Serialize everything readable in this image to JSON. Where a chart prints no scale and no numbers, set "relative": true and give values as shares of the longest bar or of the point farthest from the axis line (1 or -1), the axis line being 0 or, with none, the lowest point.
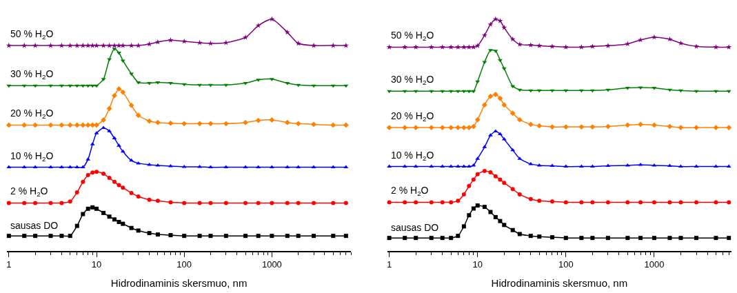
{
  "chart_data": [
    {
      "type": "line",
      "relative": true,
      "log": "x",
      "xlabel": "Hidrodinaminis skersmuo, nm",
      "xlim": [
        0.95,
        8000
      ],
      "xticks": [
        1,
        10,
        100,
        1000
      ],
      "legend": false,
      "tick_labels": "x",
      "line_style": "solid",
      "x": [
        1,
        1.5,
        2,
        3,
        4,
        5,
        6,
        7,
        8,
        9,
        10,
        12,
        14,
        16,
        18,
        20,
        25,
        30,
        40,
        50,
        70,
        100,
        150,
        200,
        300,
        500,
        700,
        1000,
        1500,
        2000,
        3000,
        5000,
        7000
      ],
      "series": [
        {
          "name": "sausas DO",
          "color": "#000000",
          "marker": "square",
          "values": [
            0.065,
            0.065,
            0.065,
            0.065,
            0.065,
            0.065,
            0.108,
            0.159,
            0.182,
            0.188,
            0.182,
            0.164,
            0.148,
            0.136,
            0.125,
            0.117,
            0.099,
            0.088,
            0.077,
            0.071,
            0.068,
            0.065,
            0.065,
            0.065,
            0.065,
            0.065,
            0.065,
            0.065,
            0.065,
            0.065,
            0.065,
            0.065,
            0.065
          ]
        },
        {
          "name": "2 % H$_{2}$O",
          "color": "#ff0000",
          "marker": "circle",
          "values": [
            0.207,
            0.207,
            0.207,
            0.207,
            0.207,
            0.213,
            0.253,
            0.298,
            0.327,
            0.338,
            0.341,
            0.333,
            0.315,
            0.298,
            0.284,
            0.273,
            0.25,
            0.235,
            0.221,
            0.216,
            0.21,
            0.207,
            0.207,
            0.207,
            0.207,
            0.207,
            0.207,
            0.207,
            0.207,
            0.207,
            0.207,
            0.207,
            0.207
          ]
        },
        {
          "name": "10 % H$_{2}$O",
          "color": "#0000ff",
          "marker": "triangle",
          "values": [
            0.361,
            0.361,
            0.361,
            0.361,
            0.361,
            0.361,
            0.361,
            0.361,
            0.395,
            0.46,
            0.508,
            0.531,
            0.517,
            0.486,
            0.454,
            0.429,
            0.39,
            0.378,
            0.372,
            0.369,
            0.366,
            0.363,
            0.363,
            0.361,
            0.361,
            0.361,
            0.361,
            0.361,
            0.361,
            0.361,
            0.361,
            0.361,
            0.361
          ]
        },
        {
          "name": "20 % H$_{2}$O",
          "color": "#ff8000",
          "marker": "diamond",
          "values": [
            0.543,
            0.543,
            0.543,
            0.543,
            0.543,
            0.543,
            0.543,
            0.543,
            0.543,
            0.543,
            0.543,
            0.565,
            0.614,
            0.67,
            0.699,
            0.685,
            0.628,
            0.585,
            0.56,
            0.554,
            0.551,
            0.549,
            0.549,
            0.549,
            0.549,
            0.554,
            0.563,
            0.565,
            0.554,
            0.549,
            0.546,
            0.543,
            0.543
          ]
        },
        {
          "name": "30 % H$_{2}$O",
          "color": "#008000",
          "marker": "triangle-down",
          "values": [
            0.713,
            0.713,
            0.713,
            0.713,
            0.713,
            0.713,
            0.713,
            0.713,
            0.713,
            0.713,
            0.713,
            0.741,
            0.827,
            0.872,
            0.855,
            0.821,
            0.764,
            0.727,
            0.724,
            0.727,
            0.724,
            0.719,
            0.716,
            0.716,
            0.716,
            0.724,
            0.738,
            0.741,
            0.724,
            0.716,
            0.713,
            0.713,
            0.713
          ]
        },
        {
          "name": "50 % H$_{2}$O",
          "color": "#800080",
          "marker": "star",
          "values": [
            0.886,
            0.886,
            0.886,
            0.886,
            0.886,
            0.886,
            0.886,
            0.886,
            0.886,
            0.886,
            0.886,
            0.886,
            0.886,
            0.886,
            0.886,
            0.886,
            0.886,
            0.886,
            0.892,
            0.901,
            0.909,
            0.904,
            0.898,
            0.895,
            0.898,
            0.921,
            0.972,
            1,
            0.943,
            0.895,
            0.886,
            0.886,
            0.886
          ]
        }
      ]
    },
    {
      "type": "line",
      "relative": true,
      "log": "x",
      "xlabel": "Hidrodinaminis skersmuo, nm",
      "xlim": [
        0.95,
        7500
      ],
      "xticks": [
        1,
        10,
        100,
        1000
      ],
      "legend": false,
      "tick_labels": "x",
      "line_style": "solid",
      "x": [
        1,
        1.5,
        2,
        3,
        4,
        5,
        6,
        7,
        8,
        9,
        10,
        12,
        14,
        16,
        18,
        20,
        25,
        30,
        40,
        50,
        70,
        100,
        150,
        200,
        300,
        500,
        700,
        1000,
        1500,
        2000,
        3000,
        5000,
        7000
      ],
      "series": [
        {
          "name": "sausas DO",
          "color": "#000000",
          "marker": "square",
          "values": [
            0.056,
            0.056,
            0.056,
            0.056,
            0.056,
            0.056,
            0.065,
            0.106,
            0.154,
            0.183,
            0.196,
            0.19,
            0.168,
            0.146,
            0.129,
            0.112,
            0.09,
            0.073,
            0.065,
            0.062,
            0.059,
            0.056,
            0.056,
            0.056,
            0.056,
            0.056,
            0.056,
            0.056,
            0.056,
            0.056,
            0.056,
            0.056,
            0.056
          ]
        },
        {
          "name": "2 % H$_{2}$O",
          "color": "#ff0000",
          "marker": "circle",
          "values": [
            0.21,
            0.21,
            0.21,
            0.21,
            0.21,
            0.21,
            0.216,
            0.244,
            0.28,
            0.308,
            0.331,
            0.345,
            0.339,
            0.322,
            0.308,
            0.294,
            0.267,
            0.244,
            0.224,
            0.216,
            0.213,
            0.21,
            0.21,
            0.21,
            0.21,
            0.21,
            0.21,
            0.21,
            0.21,
            0.21,
            0.21,
            0.21,
            0.21
          ]
        },
        {
          "name": "10 % H$_{2}$O",
          "color": "#0000ff",
          "marker": "triangle",
          "values": [
            0.364,
            0.364,
            0.364,
            0.364,
            0.364,
            0.364,
            0.364,
            0.364,
            0.364,
            0.369,
            0.398,
            0.448,
            0.499,
            0.516,
            0.504,
            0.482,
            0.435,
            0.398,
            0.375,
            0.369,
            0.367,
            0.364,
            0.364,
            0.364,
            0.367,
            0.369,
            0.372,
            0.369,
            0.367,
            0.364,
            0.364,
            0.364,
            0.364
          ]
        },
        {
          "name": "20 % H$_{2}$O",
          "color": "#ff8000",
          "marker": "diamond",
          "values": [
            0.532,
            0.532,
            0.532,
            0.532,
            0.532,
            0.532,
            0.532,
            0.532,
            0.532,
            0.537,
            0.566,
            0.63,
            0.667,
            0.675,
            0.658,
            0.63,
            0.594,
            0.566,
            0.546,
            0.54,
            0.535,
            0.535,
            0.535,
            0.535,
            0.537,
            0.543,
            0.546,
            0.543,
            0.537,
            0.532,
            0.532,
            0.532,
            0.532
          ]
        },
        {
          "name": "30 % H$_{2}$O",
          "color": "#008000",
          "marker": "triangle-down",
          "values": [
            0.689,
            0.689,
            0.689,
            0.689,
            0.689,
            0.689,
            0.689,
            0.689,
            0.689,
            0.689,
            0.731,
            0.815,
            0.866,
            0.863,
            0.823,
            0.787,
            0.711,
            0.695,
            0.692,
            0.692,
            0.692,
            0.692,
            0.692,
            0.692,
            0.695,
            0.703,
            0.705,
            0.703,
            0.695,
            0.692,
            0.689,
            0.689,
            0.689
          ]
        },
        {
          "name": "50 % H$_{2}$O",
          "color": "#800080",
          "marker": "star",
          "values": [
            0.879,
            0.879,
            0.879,
            0.879,
            0.879,
            0.879,
            0.879,
            0.879,
            0.879,
            0.879,
            0.885,
            0.93,
            0.977,
            1,
            0.992,
            0.963,
            0.913,
            0.891,
            0.888,
            0.885,
            0.882,
            0.879,
            0.879,
            0.882,
            0.885,
            0.893,
            0.91,
            0.922,
            0.913,
            0.896,
            0.882,
            0.879,
            0.879
          ]
        }
      ]
    }
  ]
}
